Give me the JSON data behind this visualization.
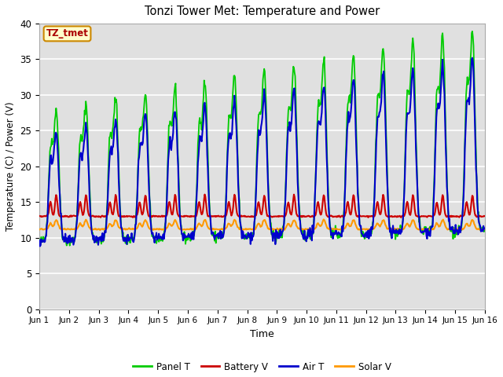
{
  "title": "Tonzi Tower Met: Temperature and Power",
  "xlabel": "Time",
  "ylabel": "Temperature (C) / Power (V)",
  "ylim": [
    0,
    40
  ],
  "yticks": [
    0,
    5,
    10,
    15,
    20,
    25,
    30,
    35,
    40
  ],
  "xlim": [
    0,
    15
  ],
  "xtick_labels": [
    "Jun 1",
    "Jun 2",
    "Jun 3",
    "Jun 4",
    "Jun 5",
    "Jun 6",
    "Jun 7",
    "Jun 8",
    "Jun 9",
    "Jun 10",
    "Jun 11",
    "Jun 12",
    "Jun 13",
    "Jun 14",
    "Jun 15",
    "Jun 16"
  ],
  "colors": {
    "panel_t": "#00cc00",
    "battery_v": "#cc0000",
    "air_t": "#0000cc",
    "solar_v": "#ff9900"
  },
  "plot_bg_color": "#e0e0e0",
  "fig_bg_color": "#ffffff",
  "annotation_text": "TZ_tmet",
  "annotation_color": "#aa0000",
  "annotation_bg": "#ffffcc",
  "annotation_edge": "#cc8800",
  "legend_labels": [
    "Panel T",
    "Battery V",
    "Air T",
    "Solar V"
  ],
  "grid_color": "#ffffff",
  "spine_color": "#aaaaaa"
}
